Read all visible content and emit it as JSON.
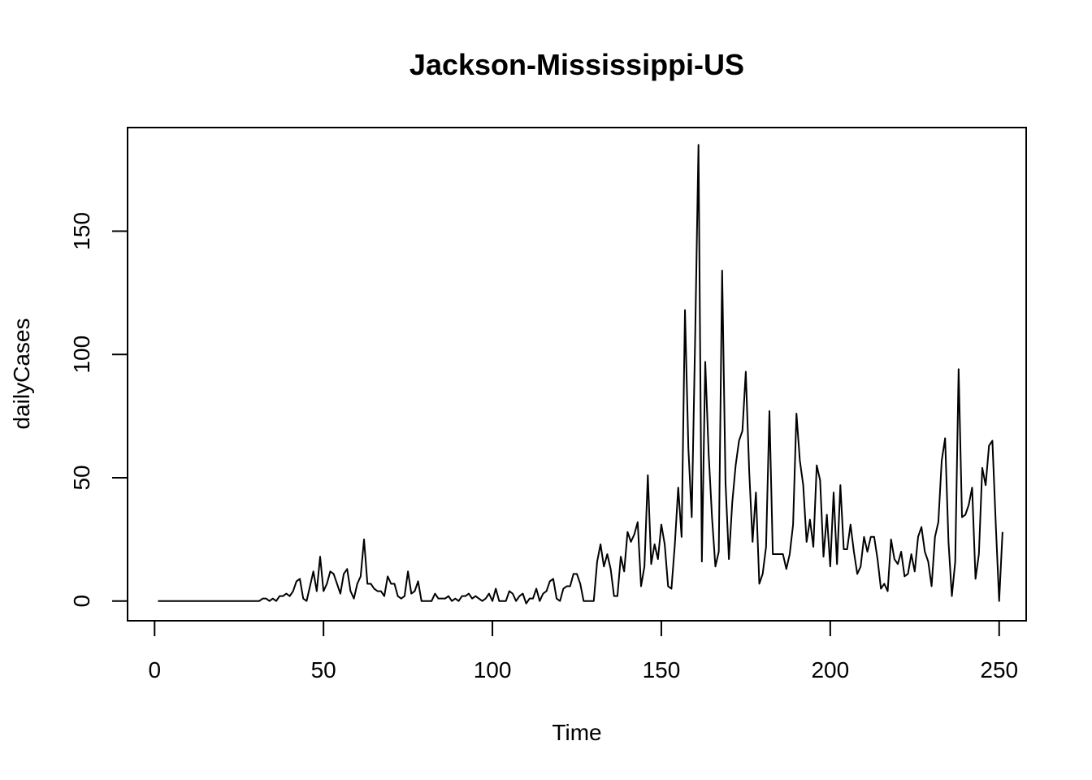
{
  "chart_data": {
    "type": "line",
    "title": "Jackson-Mississippi-US",
    "xlabel": "Time",
    "ylabel": "dailyCases",
    "xlim": [
      -8,
      258
    ],
    "ylim": [
      -8,
      192
    ],
    "x_ticks": [
      0,
      50,
      100,
      150,
      200,
      250
    ],
    "y_ticks": [
      0,
      50,
      100,
      150
    ],
    "grid": false,
    "legend": "none",
    "line_color": "#000000",
    "series": [
      {
        "x_start": 1,
        "values": [
          0,
          0,
          0,
          0,
          0,
          0,
          0,
          0,
          0,
          0,
          0,
          0,
          0,
          0,
          0,
          0,
          0,
          0,
          0,
          0,
          0,
          0,
          0,
          0,
          0,
          0,
          0,
          0,
          0,
          0,
          0,
          1,
          1,
          0,
          1,
          0,
          2,
          2,
          3,
          2,
          4,
          8,
          9,
          1,
          0,
          6,
          12,
          4,
          18,
          4,
          7,
          12,
          11,
          7,
          3,
          11,
          13,
          4,
          1,
          7,
          10,
          25,
          7,
          7,
          5,
          4,
          4,
          2,
          10,
          7,
          7,
          2,
          1,
          2,
          12,
          3,
          4,
          8,
          0,
          0,
          0,
          0,
          3,
          1,
          1,
          1,
          2,
          0,
          1,
          0,
          2,
          2,
          3,
          1,
          2,
          1,
          0,
          1,
          3,
          0,
          5,
          0,
          0,
          0,
          4,
          3,
          0,
          2,
          3,
          -1,
          1,
          1,
          5,
          0,
          3,
          4,
          8,
          9,
          1,
          0,
          5,
          6,
          6,
          11,
          11,
          7,
          0,
          0,
          0,
          0,
          16,
          23,
          14,
          19,
          13,
          2,
          2,
          18,
          12,
          28,
          24,
          27,
          32,
          6,
          14,
          51,
          15,
          23,
          17,
          31,
          23,
          6,
          5,
          23,
          46,
          26,
          118,
          62,
          34,
          106,
          185,
          16,
          97,
          60,
          34,
          14,
          20,
          134,
          48,
          17,
          40,
          55,
          65,
          69,
          93,
          53,
          24,
          44,
          7,
          11,
          22,
          77,
          19,
          19,
          19,
          19,
          13,
          19,
          31,
          76,
          57,
          47,
          24,
          33,
          22,
          55,
          49,
          18,
          35,
          14,
          44,
          15,
          47,
          21,
          21,
          31,
          20,
          11,
          14,
          26,
          20,
          26,
          26,
          17,
          5,
          7,
          4,
          25,
          17,
          15,
          20,
          10,
          11,
          19,
          12,
          26,
          30,
          20,
          16,
          6,
          26,
          32,
          57,
          66,
          24,
          2,
          16,
          94,
          34,
          35,
          39,
          46,
          9,
          19,
          54,
          47,
          63,
          65,
          31,
          0,
          28
        ]
      }
    ]
  }
}
